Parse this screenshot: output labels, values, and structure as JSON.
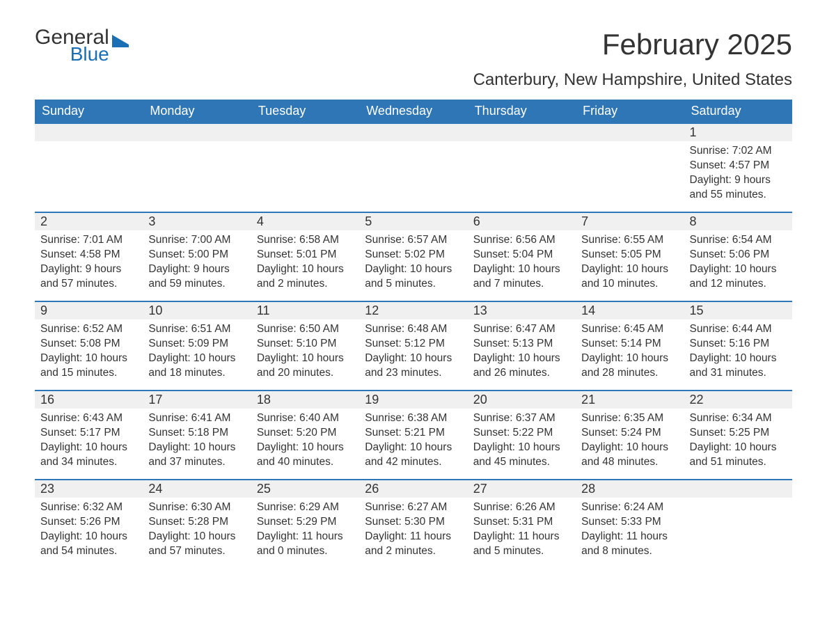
{
  "logo": {
    "line1": "General",
    "line2": "Blue",
    "icon_color": "#1a6fb5"
  },
  "title": "February 2025",
  "location": "Canterbury, New Hampshire, United States",
  "colors": {
    "header_bg": "#2f76b6",
    "header_text": "#ffffff",
    "row_border": "#2f76b6",
    "daynum_bg": "#f0f0f0",
    "body_text": "#333333",
    "background": "#ffffff"
  },
  "weekdays": [
    "Sunday",
    "Monday",
    "Tuesday",
    "Wednesday",
    "Thursday",
    "Friday",
    "Saturday"
  ],
  "labels": {
    "sunrise": "Sunrise",
    "sunset": "Sunset",
    "daylight": "Daylight"
  },
  "start_weekday_index": 6,
  "days": [
    {
      "n": 1,
      "sunrise": "7:02 AM",
      "sunset": "4:57 PM",
      "daylight": "9 hours and 55 minutes."
    },
    {
      "n": 2,
      "sunrise": "7:01 AM",
      "sunset": "4:58 PM",
      "daylight": "9 hours and 57 minutes."
    },
    {
      "n": 3,
      "sunrise": "7:00 AM",
      "sunset": "5:00 PM",
      "daylight": "9 hours and 59 minutes."
    },
    {
      "n": 4,
      "sunrise": "6:58 AM",
      "sunset": "5:01 PM",
      "daylight": "10 hours and 2 minutes."
    },
    {
      "n": 5,
      "sunrise": "6:57 AM",
      "sunset": "5:02 PM",
      "daylight": "10 hours and 5 minutes."
    },
    {
      "n": 6,
      "sunrise": "6:56 AM",
      "sunset": "5:04 PM",
      "daylight": "10 hours and 7 minutes."
    },
    {
      "n": 7,
      "sunrise": "6:55 AM",
      "sunset": "5:05 PM",
      "daylight": "10 hours and 10 minutes."
    },
    {
      "n": 8,
      "sunrise": "6:54 AM",
      "sunset": "5:06 PM",
      "daylight": "10 hours and 12 minutes."
    },
    {
      "n": 9,
      "sunrise": "6:52 AM",
      "sunset": "5:08 PM",
      "daylight": "10 hours and 15 minutes."
    },
    {
      "n": 10,
      "sunrise": "6:51 AM",
      "sunset": "5:09 PM",
      "daylight": "10 hours and 18 minutes."
    },
    {
      "n": 11,
      "sunrise": "6:50 AM",
      "sunset": "5:10 PM",
      "daylight": "10 hours and 20 minutes."
    },
    {
      "n": 12,
      "sunrise": "6:48 AM",
      "sunset": "5:12 PM",
      "daylight": "10 hours and 23 minutes."
    },
    {
      "n": 13,
      "sunrise": "6:47 AM",
      "sunset": "5:13 PM",
      "daylight": "10 hours and 26 minutes."
    },
    {
      "n": 14,
      "sunrise": "6:45 AM",
      "sunset": "5:14 PM",
      "daylight": "10 hours and 28 minutes."
    },
    {
      "n": 15,
      "sunrise": "6:44 AM",
      "sunset": "5:16 PM",
      "daylight": "10 hours and 31 minutes."
    },
    {
      "n": 16,
      "sunrise": "6:43 AM",
      "sunset": "5:17 PM",
      "daylight": "10 hours and 34 minutes."
    },
    {
      "n": 17,
      "sunrise": "6:41 AM",
      "sunset": "5:18 PM",
      "daylight": "10 hours and 37 minutes."
    },
    {
      "n": 18,
      "sunrise": "6:40 AM",
      "sunset": "5:20 PM",
      "daylight": "10 hours and 40 minutes."
    },
    {
      "n": 19,
      "sunrise": "6:38 AM",
      "sunset": "5:21 PM",
      "daylight": "10 hours and 42 minutes."
    },
    {
      "n": 20,
      "sunrise": "6:37 AM",
      "sunset": "5:22 PM",
      "daylight": "10 hours and 45 minutes."
    },
    {
      "n": 21,
      "sunrise": "6:35 AM",
      "sunset": "5:24 PM",
      "daylight": "10 hours and 48 minutes."
    },
    {
      "n": 22,
      "sunrise": "6:34 AM",
      "sunset": "5:25 PM",
      "daylight": "10 hours and 51 minutes."
    },
    {
      "n": 23,
      "sunrise": "6:32 AM",
      "sunset": "5:26 PM",
      "daylight": "10 hours and 54 minutes."
    },
    {
      "n": 24,
      "sunrise": "6:30 AM",
      "sunset": "5:28 PM",
      "daylight": "10 hours and 57 minutes."
    },
    {
      "n": 25,
      "sunrise": "6:29 AM",
      "sunset": "5:29 PM",
      "daylight": "11 hours and 0 minutes."
    },
    {
      "n": 26,
      "sunrise": "6:27 AM",
      "sunset": "5:30 PM",
      "daylight": "11 hours and 2 minutes."
    },
    {
      "n": 27,
      "sunrise": "6:26 AM",
      "sunset": "5:31 PM",
      "daylight": "11 hours and 5 minutes."
    },
    {
      "n": 28,
      "sunrise": "6:24 AM",
      "sunset": "5:33 PM",
      "daylight": "11 hours and 8 minutes."
    }
  ]
}
